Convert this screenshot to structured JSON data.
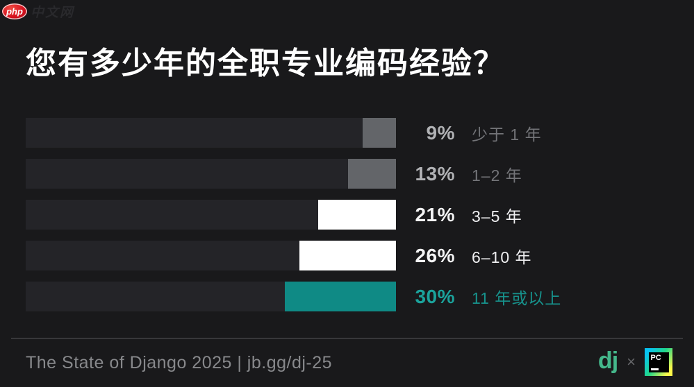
{
  "page": {
    "background": "#19191b",
    "brand": {
      "badge_text": "php",
      "brand_name": "中文网"
    },
    "title": "您有多少年的全职专业编码经验？"
  },
  "chart_data": {
    "type": "bar",
    "orientation": "horizontal",
    "title": "您有多少年的全职专业编码经验？",
    "categories": [
      "少于 1 年",
      "1–2 年",
      "3–5 年",
      "6–10 年",
      "11 年或以上"
    ],
    "values": [
      9,
      13,
      21,
      26,
      30
    ],
    "unit": "percent",
    "xlim": [
      0,
      100
    ],
    "bar_fill_alignment": "right",
    "track_color": "#242428",
    "highlight_color": "#0f8a85",
    "rows": [
      {
        "pct": "9%",
        "label": "少于 1 年",
        "value": 9,
        "fill": "#636569",
        "pct_color": "#b1b2b5",
        "label_color": "#737478",
        "pct_bold": false
      },
      {
        "pct": "13%",
        "label": "1–2 年",
        "value": 13,
        "fill": "#636569",
        "pct_color": "#b1b2b5",
        "label_color": "#737478",
        "pct_bold": false
      },
      {
        "pct": "21%",
        "label": "3–5 年",
        "value": 21,
        "fill": "#ffffff",
        "pct_color": "#f4f4f5",
        "label_color": "#f0f0f2",
        "pct_bold": false
      },
      {
        "pct": "26%",
        "label": "6–10 年",
        "value": 26,
        "fill": "#ffffff",
        "pct_color": "#f4f4f5",
        "label_color": "#f0f0f2",
        "pct_bold": false
      },
      {
        "pct": "30%",
        "label": "11 年或以上",
        "value": 30,
        "fill": "#0f8a85",
        "pct_color": "#1ba39c",
        "label_color": "#17928c",
        "pct_bold": true
      }
    ]
  },
  "footer": {
    "source_text": "The State of Django 2025 | jb.gg/dj-25",
    "django_logo_text": "dj",
    "separator": "×",
    "pycharm_logo_text": "PC"
  }
}
